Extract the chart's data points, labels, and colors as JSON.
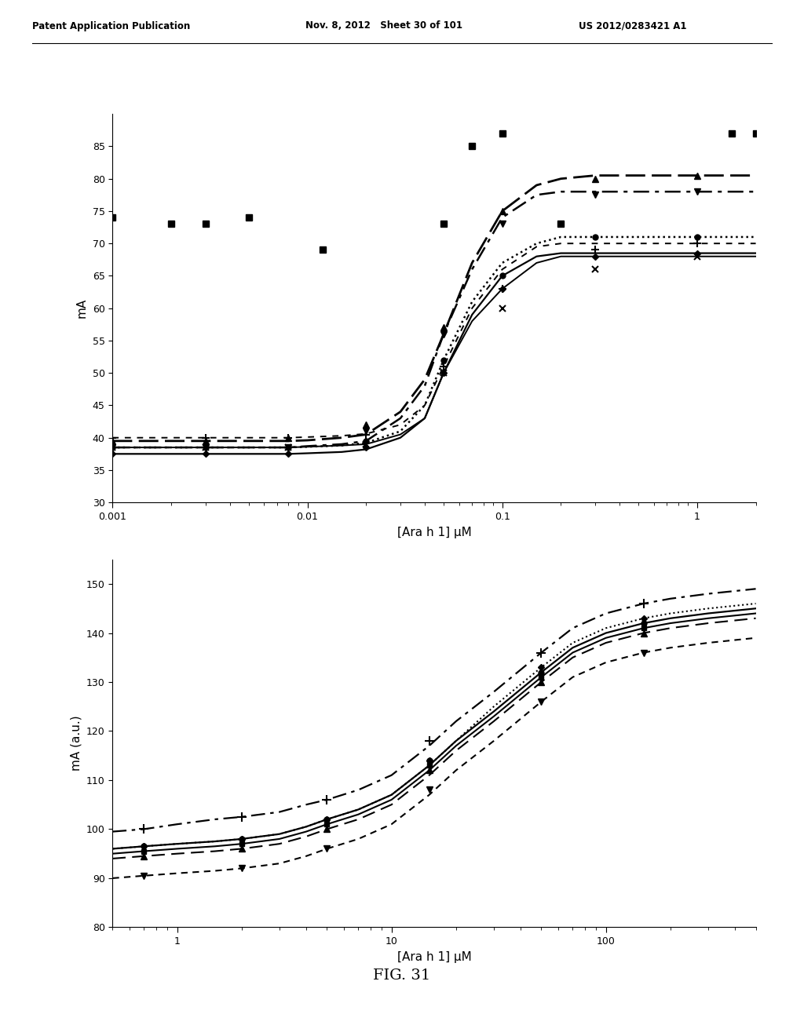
{
  "bg_color": "#ffffff",
  "header_left": "Patent Application Publication",
  "header_mid": "Nov. 8, 2012   Sheet 30 of 101",
  "header_right": "US 2012/0283421 A1",
  "fig_label": "FIG. 31",
  "plot1": {
    "ylabel": "mA",
    "xlabel": "[Ara h 1] μM",
    "xlim": [
      0.001,
      2.0
    ],
    "ylim": [
      30,
      90
    ],
    "yticks": [
      30,
      35,
      40,
      45,
      50,
      55,
      60,
      65,
      70,
      75,
      80,
      85
    ],
    "xtick_labels": [
      "0.001",
      "0.01",
      "0.1",
      "1"
    ],
    "xtick_vals": [
      0.001,
      0.01,
      0.1,
      1.0
    ],
    "scatter_x": [
      0.001,
      0.002,
      0.003,
      0.005,
      0.012,
      0.05,
      0.07,
      0.1,
      0.2,
      1.5,
      2.0
    ],
    "scatter_y": [
      74,
      73,
      73,
      74,
      69,
      73,
      85,
      87,
      73,
      87,
      87
    ],
    "curve1_style": "--",
    "curve1_dashes": [
      9,
      3
    ],
    "curve1_lw": 2.0,
    "curve1_marker": "^",
    "curve1_x": [
      0.001,
      0.002,
      0.003,
      0.005,
      0.008,
      0.01,
      0.015,
      0.02,
      0.03,
      0.04,
      0.05,
      0.07,
      0.1,
      0.15,
      0.2,
      0.3,
      0.5,
      1.0,
      2.0
    ],
    "curve1_y": [
      39.5,
      39.5,
      39.5,
      39.5,
      39.5,
      39.6,
      40.0,
      40.5,
      44,
      49,
      56,
      67,
      75,
      79,
      80,
      80.5,
      80.5,
      80.5,
      80.5
    ],
    "curve1_mx": [
      0.001,
      0.003,
      0.008,
      0.02,
      0.05,
      0.1,
      0.3,
      1.0
    ],
    "curve1_my": [
      39.5,
      39.5,
      40,
      42,
      57,
      75,
      80,
      80.5
    ],
    "curve2_style": "-.",
    "curve2_dashes": [
      8,
      3,
      2,
      3
    ],
    "curve2_lw": 1.8,
    "curve2_marker": "v",
    "curve2_x": [
      0.001,
      0.002,
      0.003,
      0.005,
      0.008,
      0.01,
      0.015,
      0.02,
      0.03,
      0.04,
      0.05,
      0.07,
      0.1,
      0.15,
      0.2,
      0.3,
      0.5,
      1.0,
      2.0
    ],
    "curve2_y": [
      38.5,
      38.5,
      38.5,
      38.5,
      38.5,
      38.7,
      39.0,
      39.5,
      43,
      48,
      56,
      66,
      74,
      77.5,
      78,
      78,
      78,
      78,
      78
    ],
    "curve2_mx": [
      0.001,
      0.003,
      0.008,
      0.02,
      0.05,
      0.1,
      0.3,
      1.0
    ],
    "curve2_my": [
      38.5,
      38.5,
      38.5,
      41,
      56,
      73,
      77.5,
      78
    ],
    "curve3_style": ":",
    "curve3_lw": 1.8,
    "curve3_marker": "o",
    "curve3_x": [
      0.001,
      0.002,
      0.003,
      0.005,
      0.008,
      0.01,
      0.015,
      0.02,
      0.03,
      0.04,
      0.05,
      0.07,
      0.1,
      0.15,
      0.2,
      0.3,
      0.5,
      1.0,
      2.0
    ],
    "curve3_y": [
      38.5,
      38.5,
      38.5,
      38.5,
      38.5,
      38.6,
      38.8,
      39.2,
      41,
      45,
      52,
      61,
      67,
      70,
      71,
      71,
      71,
      71,
      71
    ],
    "curve3_mx": [
      0.001,
      0.003,
      0.008,
      0.02,
      0.05,
      0.1,
      0.3,
      1.0
    ],
    "curve3_my": [
      38.5,
      38.5,
      38.5,
      39.5,
      52,
      65,
      71,
      71
    ],
    "curve4_style": "-",
    "curve4_lw": 1.6,
    "curve4_marker": "D",
    "curve4_x": [
      0.001,
      0.002,
      0.003,
      0.005,
      0.008,
      0.01,
      0.015,
      0.02,
      0.03,
      0.04,
      0.05,
      0.07,
      0.1,
      0.15,
      0.2,
      0.3,
      0.5,
      1.0,
      2.0
    ],
    "curve4_y": [
      37.5,
      37.5,
      37.5,
      37.5,
      37.5,
      37.6,
      37.8,
      38.2,
      40,
      43,
      50,
      59,
      65,
      68,
      68.5,
      68.5,
      68.5,
      68.5,
      68.5
    ],
    "curve4_mx": [
      0.001,
      0.003,
      0.008,
      0.02,
      0.05,
      0.1,
      0.3,
      1.0
    ],
    "curve4_my": [
      37.5,
      37.5,
      37.5,
      38.5,
      50,
      63,
      68,
      68.5
    ],
    "curve5_style": "--",
    "curve5_dashes": [
      4,
      4
    ],
    "curve5_lw": 1.4,
    "curve5_marker": "+",
    "curve5_x": [
      0.001,
      0.002,
      0.003,
      0.005,
      0.008,
      0.01,
      0.015,
      0.02,
      0.03,
      0.04,
      0.05,
      0.07,
      0.1,
      0.15,
      0.2,
      0.3,
      0.5,
      1.0,
      2.0
    ],
    "curve5_y": [
      40.0,
      40.0,
      40.0,
      40.0,
      40.0,
      40.1,
      40.3,
      40.6,
      42,
      45,
      51,
      60,
      66,
      69.5,
      70,
      70,
      70,
      70,
      70
    ],
    "curve5_mx": [
      0.001,
      0.003,
      0.008,
      0.02,
      0.05,
      0.1,
      0.3,
      1.0
    ],
    "curve5_my": [
      40.0,
      40.0,
      40.0,
      40.5,
      51,
      63,
      69,
      70
    ],
    "curve6_style": "-",
    "curve6_lw": 1.4,
    "curve6_marker": "x",
    "curve6_x": [
      0.001,
      0.002,
      0.003,
      0.005,
      0.008,
      0.01,
      0.015,
      0.02,
      0.03,
      0.04,
      0.05,
      0.07,
      0.1,
      0.15,
      0.2,
      0.3,
      0.5,
      1.0,
      2.0
    ],
    "curve6_y": [
      38.5,
      38.5,
      38.5,
      38.5,
      38.5,
      38.6,
      38.8,
      39.0,
      40.5,
      43,
      50,
      58,
      63,
      67,
      68,
      68,
      68,
      68,
      68
    ],
    "curve6_mx": [
      0.001,
      0.003,
      0.008,
      0.02,
      0.05,
      0.1,
      0.3,
      1.0
    ],
    "curve6_my": [
      38.5,
      38.5,
      38.5,
      39,
      50,
      60,
      66,
      68
    ]
  },
  "plot2": {
    "ylabel": "mA (a.u.)",
    "xlabel": "[Ara h 1] μM",
    "xlim": [
      0.5,
      500
    ],
    "ylim": [
      80,
      155
    ],
    "yticks": [
      80,
      90,
      100,
      110,
      120,
      130,
      140,
      150
    ],
    "xtick_vals": [
      1,
      10,
      100
    ],
    "xtick_labels": [
      "1",
      "10",
      "100"
    ],
    "c1_style": "-.",
    "c1_dashes": [
      8,
      3,
      2,
      3
    ],
    "c1_lw": 1.6,
    "c1_marker": "+",
    "c1_x": [
      0.5,
      0.7,
      1.0,
      1.5,
      2,
      3,
      4,
      5,
      7,
      10,
      15,
      20,
      30,
      50,
      70,
      100,
      150,
      200,
      300,
      500
    ],
    "c1_y": [
      99.5,
      100,
      101,
      102,
      102.5,
      103.5,
      105,
      106,
      108,
      111,
      117,
      122,
      128,
      136,
      141,
      144,
      146,
      147,
      148,
      149
    ],
    "c1_mx": [
      0.7,
      2,
      5,
      15,
      50,
      150
    ],
    "c1_my": [
      100,
      102.5,
      106,
      118,
      136,
      146
    ],
    "c2_style": "-",
    "c2_lw": 1.6,
    "c2_marker": "o",
    "c2_x": [
      0.5,
      0.7,
      1.0,
      1.5,
      2,
      3,
      4,
      5,
      7,
      10,
      15,
      20,
      30,
      50,
      70,
      100,
      150,
      200,
      300,
      500
    ],
    "c2_y": [
      96,
      96.5,
      97,
      97.5,
      98,
      99,
      100.5,
      102,
      104,
      107,
      113,
      118,
      124,
      132,
      137,
      140,
      142,
      143,
      144,
      145
    ],
    "c2_mx": [
      0.7,
      2,
      5,
      15,
      50,
      150
    ],
    "c2_my": [
      96.5,
      98,
      102,
      114,
      132,
      142
    ],
    "c3_style": "-",
    "c3_lw": 1.5,
    "c3_marker": "s",
    "c3_x": [
      0.5,
      0.7,
      1.0,
      1.5,
      2,
      3,
      4,
      5,
      7,
      10,
      15,
      20,
      30,
      50,
      70,
      100,
      150,
      200,
      300,
      500
    ],
    "c3_y": [
      95,
      95.5,
      96,
      96.5,
      97,
      98,
      99.5,
      101,
      103,
      106,
      112,
      117,
      123,
      131,
      136,
      139,
      141,
      142,
      143,
      144
    ],
    "c3_mx": [
      0.7,
      2,
      5,
      15,
      50,
      150
    ],
    "c3_my": [
      95.5,
      97,
      101,
      113,
      131,
      141
    ],
    "c4_style": "--",
    "c4_dashes": [
      8,
      4
    ],
    "c4_lw": 1.5,
    "c4_marker": "^",
    "c4_x": [
      0.5,
      0.7,
      1.0,
      1.5,
      2,
      3,
      4,
      5,
      7,
      10,
      15,
      20,
      30,
      50,
      70,
      100,
      150,
      200,
      300,
      500
    ],
    "c4_y": [
      94,
      94.5,
      95,
      95.5,
      96,
      97,
      98.5,
      100,
      102,
      105,
      111,
      116,
      122,
      130,
      135,
      138,
      140,
      141,
      142,
      143
    ],
    "c4_mx": [
      0.7,
      2,
      5,
      15,
      50,
      150
    ],
    "c4_my": [
      94.5,
      96,
      100,
      112,
      130,
      140
    ],
    "c5_style": ":",
    "c5_lw": 1.5,
    "c5_marker": "D",
    "c5_x": [
      0.5,
      0.7,
      1.0,
      1.5,
      2,
      3,
      4,
      5,
      7,
      10,
      15,
      20,
      30,
      50,
      70,
      100,
      150,
      200,
      300,
      500
    ],
    "c5_y": [
      96,
      96.5,
      97,
      97.5,
      98,
      99,
      100.5,
      102,
      104,
      107,
      113,
      118,
      125,
      133,
      138,
      141,
      143,
      144,
      145,
      146
    ],
    "c5_mx": [
      0.7,
      2,
      5,
      15,
      50,
      150
    ],
    "c5_my": [
      96.5,
      98,
      102,
      114,
      133,
      143
    ],
    "c6_style": "--",
    "c6_dashes": [
      4,
      3,
      4,
      3
    ],
    "c6_lw": 1.5,
    "c6_marker": "v",
    "c6_x": [
      0.5,
      0.7,
      1.0,
      1.5,
      2,
      3,
      4,
      5,
      7,
      10,
      15,
      20,
      30,
      50,
      70,
      100,
      150,
      200,
      300,
      500
    ],
    "c6_y": [
      90,
      90.5,
      91,
      91.5,
      92,
      93,
      94.5,
      96,
      98,
      101,
      107,
      112,
      118,
      126,
      131,
      134,
      136,
      137,
      138,
      139
    ],
    "c6_mx": [
      0.7,
      2,
      5,
      15,
      50,
      150
    ],
    "c6_my": [
      90.5,
      92,
      96,
      108,
      126,
      136
    ]
  }
}
